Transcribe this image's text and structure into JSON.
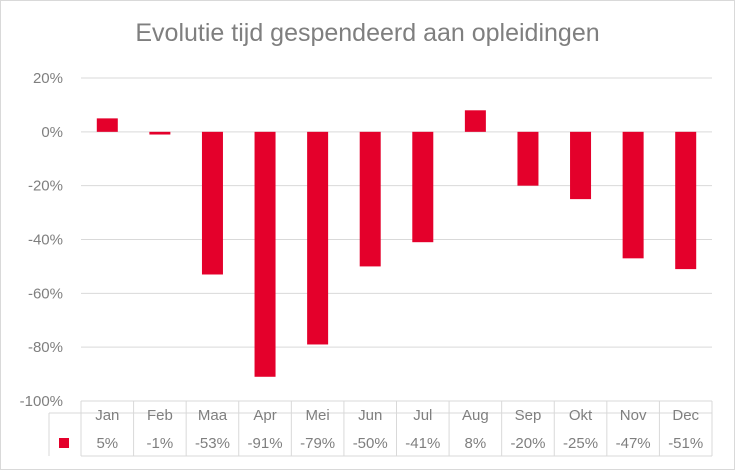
{
  "chart_data": {
    "type": "bar",
    "title": "Evolutie tijd gespendeerd aan opleidingen",
    "categories": [
      "Jan",
      "Feb",
      "Maa",
      "Apr",
      "Mei",
      "Jun",
      "Jul",
      "Aug",
      "Sep",
      "Okt",
      "Nov",
      "Dec"
    ],
    "values": [
      5,
      -1,
      -53,
      -91,
      -79,
      -50,
      -41,
      8,
      -20,
      -25,
      -47,
      -51
    ],
    "table_labels": [
      "5%",
      "-1%",
      "-53%",
      "-91%",
      "-79%",
      "-50%",
      "-41%",
      "8%",
      "-20%",
      "-25%",
      "-47%",
      "-51%"
    ],
    "yticks": [
      20,
      0,
      -20,
      -40,
      -60,
      -80,
      -100
    ],
    "ytick_labels": [
      "20%",
      "0%",
      "-20%",
      "-40%",
      "-60%",
      "-80%",
      "-100%"
    ],
    "ylim": [
      -100,
      20
    ],
    "xlabel": "",
    "ylabel": "",
    "grid": true,
    "legend": "data table",
    "bar_color": "#e4002b"
  }
}
